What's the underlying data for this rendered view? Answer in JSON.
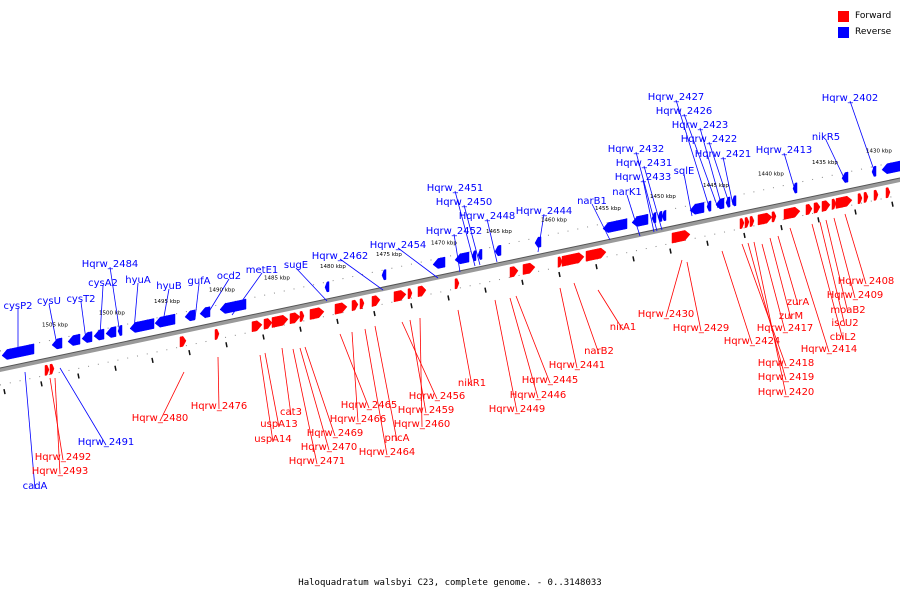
{
  "legend": {
    "forward_label": "Forward",
    "reverse_label": "Reverse",
    "forward_color": "#ff0000",
    "reverse_color": "#0000ff"
  },
  "caption": "Haloquadratum walsbyi C23, complete genome. - 0..3148033",
  "axis": {
    "tick_labels": [
      "1505 kbp",
      "1500 kbp",
      "1495 kbp",
      "1490 kbp",
      "1485 kbp",
      "1480 kbp",
      "1475 kbp",
      "1470 kbp",
      "1465 kbp",
      "1460 kbp",
      "1455 kbp",
      "1450 kbp",
      "1445 kbp",
      "1440 kbp",
      "1435 kbp",
      "1430 kbp"
    ]
  },
  "genes_reverse": [
    "cysP2",
    "cysU",
    "cysT2",
    "cysA2",
    "hyuA",
    "hyuB",
    "gufA",
    "ocd2",
    "metE1",
    "Hqrw_2484",
    "sugE",
    "Hqrw_2462",
    "Hqrw_2454",
    "Hqrw_2452",
    "Hqrw_2451",
    "Hqrw_2450",
    "Hqrw_2448",
    "Hqrw_2444",
    "narB1",
    "narK1",
    "Hqrw_2433",
    "Hqrw_2432",
    "Hqrw_2431",
    "sqlE",
    "Hqrw_2427",
    "Hqrw_2426",
    "Hqrw_2423",
    "Hqrw_2422",
    "Hqrw_2421",
    "Hqrw_2413",
    "nikR5",
    "Hqrw_2402",
    "Hqrw_2491",
    "cadA"
  ],
  "genes_forward": [
    "Hqrw_2492",
    "Hqrw_2493",
    "Hqrw_2480",
    "Hqrw_2476",
    "uspA13",
    "uspA14",
    "cat3",
    "Hqrw_2469",
    "Hqrw_2470",
    "Hqrw_2471",
    "Hqrw_2465",
    "Hqrw_2466",
    "Hqrw_2464",
    "pncA",
    "Hqrw_2456",
    "Hqrw_2459",
    "Hqrw_2460",
    "nikR1",
    "Hqrw_2445",
    "Hqrw_2446",
    "Hqrw_2449",
    "Hqrw_2441",
    "narB2",
    "nirA1",
    "Hqrw_2430",
    "Hqrw_2429",
    "Hqrw_2424",
    "Hqrw_2417",
    "Hqrw_2418",
    "Hqrw_2419",
    "Hqrw_2420",
    "zurM",
    "zurA",
    "Hqrw_2414",
    "cbiL2",
    "iscU2",
    "moaB2",
    "Hqrw_2409",
    "Hqrw_2408"
  ]
}
